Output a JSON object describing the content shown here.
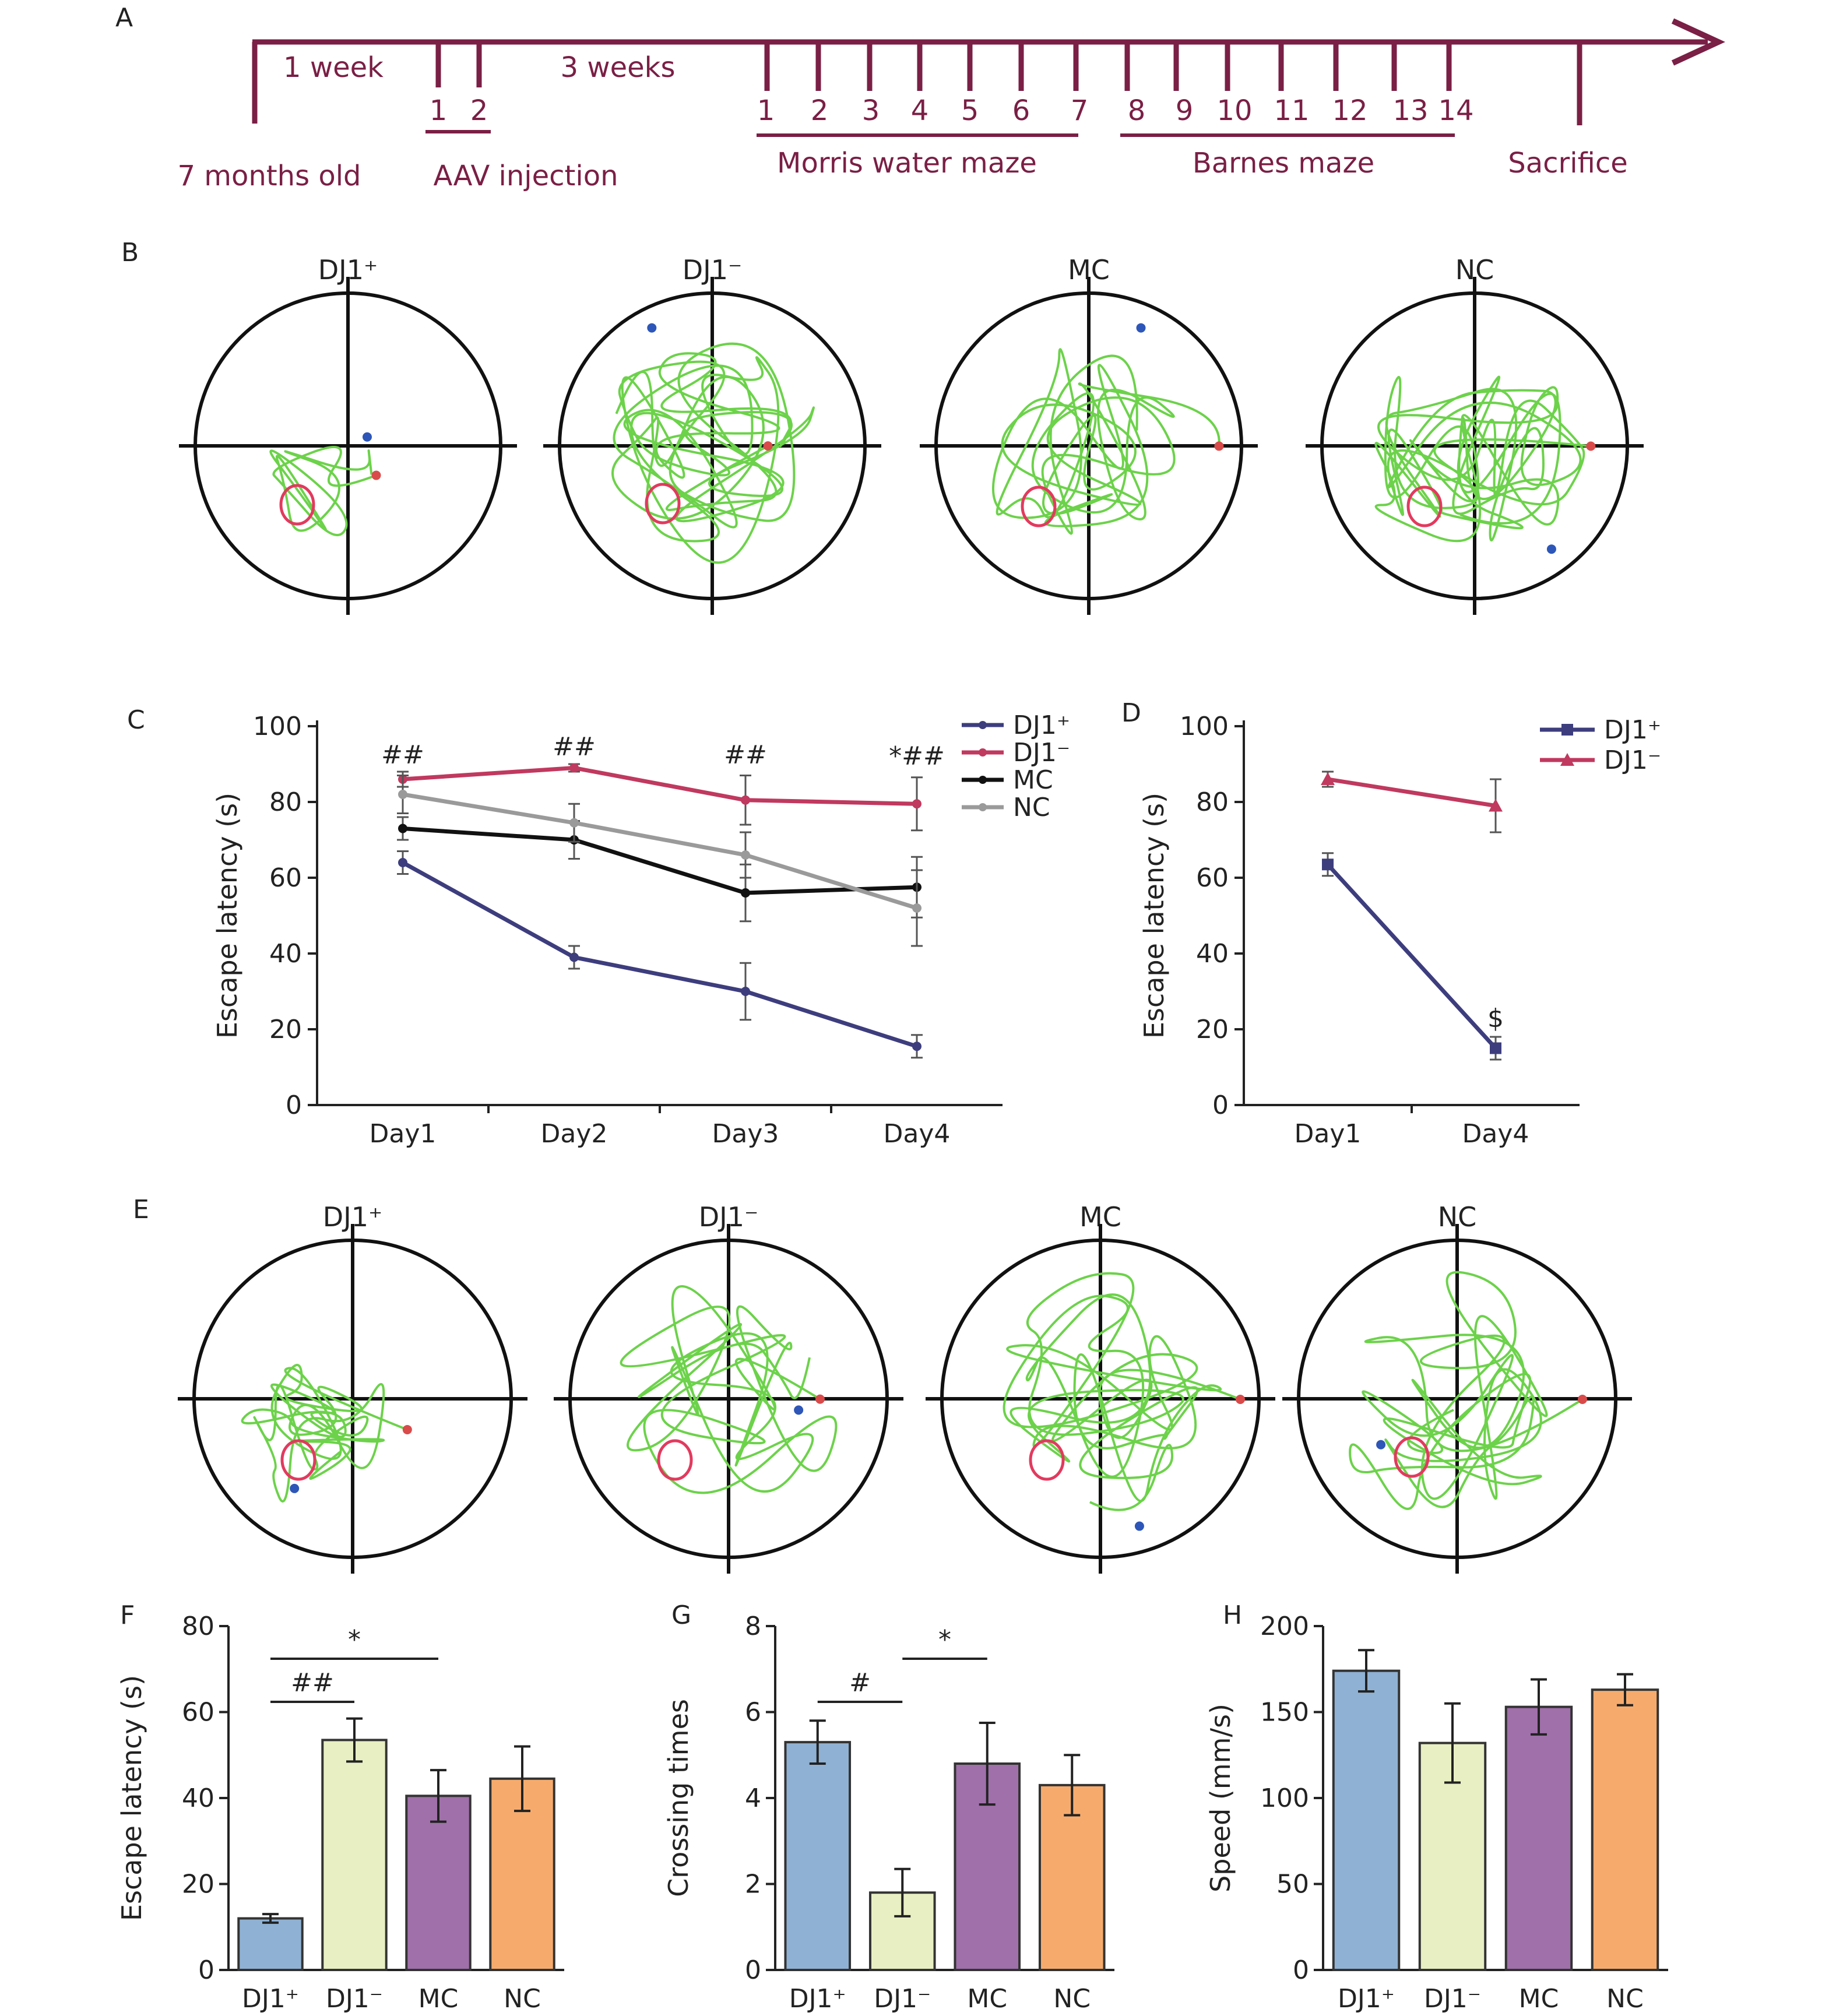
{
  "colors": {
    "timeline": "#7a1f45",
    "dj1_plus": "#3d3d7e",
    "dj1_minus": "#c0395f",
    "mc": "#111111",
    "nc": "#9a9a9a",
    "bar_dj1_plus": "#8fb1d3",
    "bar_dj1_minus": "#e8efc2",
    "bar_mc": "#a070aa",
    "bar_nc": "#f6ab6d",
    "track": "#6cd24a",
    "platform": "#e23a5e"
  },
  "panelA": {
    "label": "A",
    "week1": "1 week",
    "weeks3": "3 weeks",
    "age": "7 months old",
    "aav": "AAV injection",
    "mwm": "Morris water maze",
    "barnes": "Barnes maze",
    "sacrifice": "Sacrifice",
    "aav_days": [
      "1",
      "2"
    ],
    "mwm_days": [
      "1",
      "2",
      "3",
      "4",
      "5",
      "6",
      "7"
    ],
    "barnes_days": [
      "8",
      "9",
      "10",
      "11",
      "12",
      "13",
      "14"
    ]
  },
  "panelB": {
    "label": "B",
    "titles": [
      "DJ1⁺",
      "DJ1⁻",
      "MC",
      "NC"
    ]
  },
  "panelE": {
    "label": "E",
    "titles": [
      "DJ1⁺",
      "DJ1⁻",
      "MC",
      "NC"
    ]
  },
  "chart_data": [
    {
      "panel": "C",
      "type": "line",
      "categories": [
        "Day1",
        "Day2",
        "Day3",
        "Day4"
      ],
      "ylabel": "Escape latency (s)",
      "ylim": [
        0,
        100
      ],
      "yticks": [
        "0",
        "20",
        "40",
        "60",
        "80",
        "100"
      ],
      "legend": "top-right",
      "series": [
        {
          "name": "DJ1⁺",
          "values": [
            64,
            39,
            30,
            15.5
          ],
          "errors": [
            3,
            3,
            7.5,
            3
          ]
        },
        {
          "name": "DJ1⁻",
          "values": [
            86,
            89,
            80.5,
            79.5
          ],
          "errors": [
            2,
            1,
            6.5,
            7
          ]
        },
        {
          "name": "MC",
          "values": [
            73,
            70,
            56,
            57.5
          ],
          "errors": [
            3,
            5,
            7.5,
            8
          ]
        },
        {
          "name": "NC",
          "values": [
            82,
            74.5,
            66,
            52
          ],
          "errors": [
            5,
            5,
            6,
            10
          ]
        }
      ],
      "annotations": [
        "##",
        "##",
        "##",
        "*##"
      ]
    },
    {
      "panel": "D",
      "type": "line",
      "categories": [
        "Day1",
        "Day4"
      ],
      "ylabel": "Escape latency (s)",
      "ylim": [
        0,
        100
      ],
      "yticks": [
        "0",
        "20",
        "40",
        "60",
        "80",
        "100"
      ],
      "legend": "top-right",
      "series": [
        {
          "name": "DJ1⁺",
          "values": [
            63.5,
            15
          ],
          "errors": [
            3,
            3
          ]
        },
        {
          "name": "DJ1⁻",
          "values": [
            86,
            79
          ],
          "errors": [
            2,
            7
          ]
        }
      ],
      "annotations": [
        "$"
      ]
    },
    {
      "panel": "F",
      "type": "bar",
      "categories": [
        "DJ1⁺",
        "DJ1⁻",
        "MC",
        "NC"
      ],
      "ylabel": "Escape latency (s)",
      "ylim": [
        0,
        80
      ],
      "yticks": [
        "0",
        "20",
        "40",
        "60",
        "80"
      ],
      "values": [
        12,
        53.5,
        40.5,
        44.5
      ],
      "errors": [
        1,
        5,
        6,
        7.5
      ],
      "annotations": [
        {
          "text": "##",
          "from": 0,
          "to": 1
        },
        {
          "text": "*",
          "from": 0,
          "to": 2
        }
      ]
    },
    {
      "panel": "G",
      "type": "bar",
      "categories": [
        "DJ1⁺",
        "DJ1⁻",
        "MC",
        "NC"
      ],
      "ylabel": "Crossing times",
      "ylim": [
        0,
        8
      ],
      "yticks": [
        "0",
        "2",
        "4",
        "6",
        "8"
      ],
      "values": [
        5.3,
        1.8,
        4.8,
        4.3
      ],
      "errors": [
        0.5,
        0.55,
        0.95,
        0.7
      ],
      "annotations": [
        {
          "text": "#",
          "from": 0,
          "to": 1
        },
        {
          "text": "*",
          "from": 1,
          "to": 2
        }
      ]
    },
    {
      "panel": "H",
      "type": "bar",
      "categories": [
        "DJ1⁺",
        "DJ1⁻",
        "MC",
        "NC"
      ],
      "ylabel": "Speed (mm/s)",
      "ylim": [
        0,
        200
      ],
      "yticks": [
        "0",
        "50",
        "100",
        "150",
        "200"
      ],
      "values": [
        174,
        132,
        153,
        163
      ],
      "errors": [
        12,
        23,
        16,
        9
      ],
      "annotations": []
    }
  ]
}
